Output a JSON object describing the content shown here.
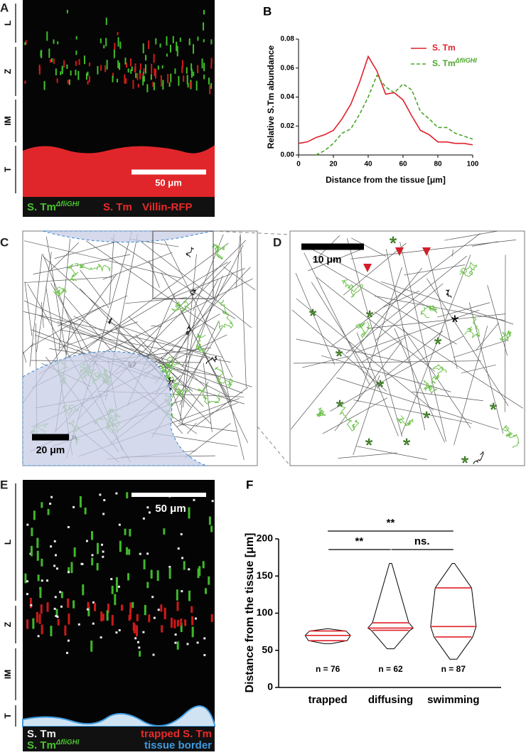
{
  "figure": {
    "A": {
      "label": "A",
      "zones": [
        "L",
        "Z",
        "IM",
        "T"
      ],
      "scale_bar": "50 μm",
      "legend": [
        {
          "text": "S. Tm",
          "superscript": "ΔfliGHI"
        },
        {
          "text": "S. Tm"
        },
        {
          "text": "Villin-RFP"
        }
      ]
    },
    "C": {
      "label": "C",
      "scale_bar": "20 μm"
    },
    "D": {
      "label": "D",
      "scale_bar": "10 μm"
    },
    "E": {
      "label": "E",
      "zones": [
        "L",
        "Z",
        "IM",
        "T"
      ],
      "scale_bar": "50 μm",
      "legend": [
        {
          "text": "S. Tm"
        },
        {
          "text": "trapped S. Tm"
        },
        {
          "text": "S. Tm",
          "superscript": "ΔfliGHI"
        },
        {
          "text": "tissue border"
        }
      ]
    }
  },
  "chart_data": [
    {
      "type": "line",
      "panel_label": "B",
      "x": [
        0,
        5,
        10,
        15,
        20,
        25,
        30,
        35,
        40,
        45,
        50,
        55,
        60,
        65,
        70,
        75,
        80,
        85,
        90,
        95,
        100
      ],
      "series": [
        {
          "name": "S. Tm",
          "color": "#e0202a",
          "line_style": "solid",
          "values": [
            0.008,
            0.009,
            0.012,
            0.014,
            0.017,
            0.025,
            0.035,
            0.05,
            0.068,
            0.058,
            0.042,
            0.043,
            0.038,
            0.027,
            0.017,
            0.014,
            0.009,
            0.009,
            0.008,
            0.008,
            0.007
          ]
        },
        {
          "name": "S. Tm",
          "superscript": "ΔfliGHI",
          "color": "#4aa52a",
          "line_style": "dashed",
          "values": [
            null,
            null,
            0.0,
            0.003,
            0.008,
            0.015,
            0.018,
            0.028,
            0.04,
            0.055,
            0.047,
            0.043,
            0.049,
            0.045,
            0.03,
            0.025,
            0.019,
            0.019,
            0.015,
            0.013,
            0.011
          ]
        }
      ],
      "xlim": [
        0,
        100
      ],
      "xticks": [
        0,
        20,
        40,
        60,
        80,
        100
      ],
      "ylim": [
        0,
        0.08
      ],
      "yticks": [
        {
          "value": 0,
          "label": "0.00"
        },
        {
          "value": 0.02,
          "label": "0.02"
        },
        {
          "value": 0.04,
          "label": "0.04"
        },
        {
          "value": 0.06,
          "label": "0.06"
        },
        {
          "value": 0.08,
          "label": "0.08"
        }
      ],
      "xlabel": "Distance from the tissue [μm]",
      "ylabel": "Relative S.Tm abundance",
      "legend": "upper right"
    },
    {
      "type": "violin",
      "panel_label": "F",
      "categories": [
        "trapped",
        "diffusing",
        "swimming"
      ],
      "violins": [
        {
          "min": 59,
          "q1": 63,
          "median": 70,
          "q3": 76,
          "max": 79,
          "n_label": "n = 76"
        },
        {
          "min": 52,
          "q1": 77,
          "median": 80,
          "q3": 87,
          "max": 167,
          "n_label": "n = 62"
        },
        {
          "min": 38,
          "q1": 68,
          "median": 82,
          "q3": 134,
          "max": 167,
          "n_label": "n = 87"
        }
      ],
      "color": "#e0202a",
      "ylim": [
        0,
        200
      ],
      "yticks": [
        0,
        50,
        100,
        150,
        200
      ],
      "ylabel": "Distance from the tissue [μm]",
      "significance": [
        {
          "pair": [
            "trapped",
            "swimming"
          ],
          "label": "**"
        },
        {
          "pair": [
            "trapped",
            "diffusing"
          ],
          "label": "**"
        },
        {
          "pair": [
            "diffusing",
            "swimming"
          ],
          "label": "ns."
        }
      ]
    }
  ]
}
